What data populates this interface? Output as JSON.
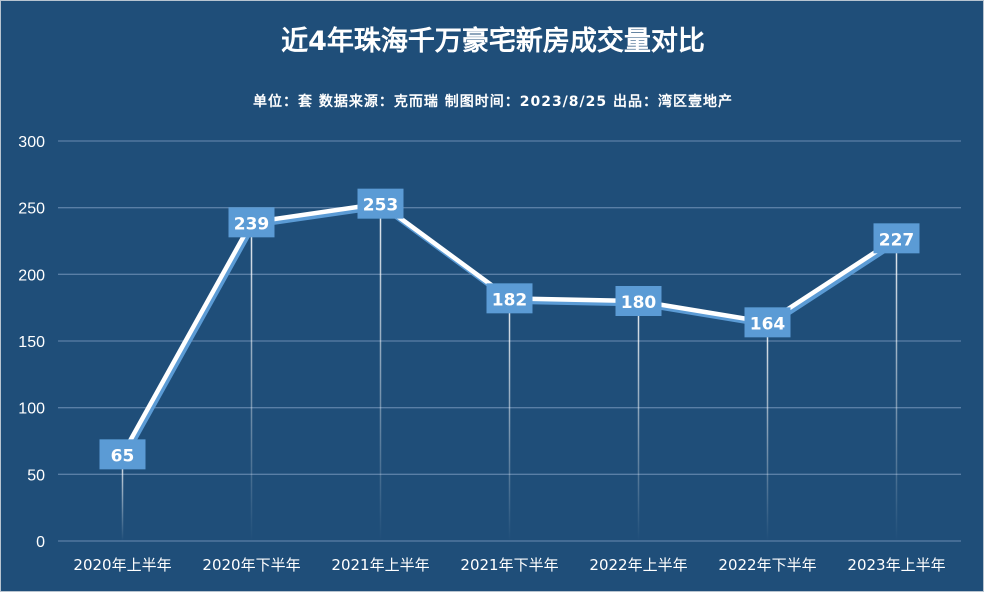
{
  "chart_data": {
    "type": "line",
    "title": "近4年珠海千万豪宅新房成交量对比",
    "subtitle": "单位：套  数据来源：克而瑞  制图时间：2023/8/25  出品：湾区壹地产",
    "categories": [
      "2020年上半年",
      "2020年下半年",
      "2021年上半年",
      "2021年下半年",
      "2022年上半年",
      "2022年下半年",
      "2023年上半年"
    ],
    "values": [
      65,
      239,
      253,
      182,
      180,
      164,
      227
    ],
    "ylim": [
      0,
      300
    ],
    "yticks": [
      0,
      50,
      100,
      150,
      200,
      250,
      300
    ],
    "grid": true,
    "data_labels": true,
    "colors": {
      "background": "#1f4e79",
      "line": "#ffffff",
      "label_box": "#5b9bd5",
      "grid": "#5a7fa6"
    }
  }
}
